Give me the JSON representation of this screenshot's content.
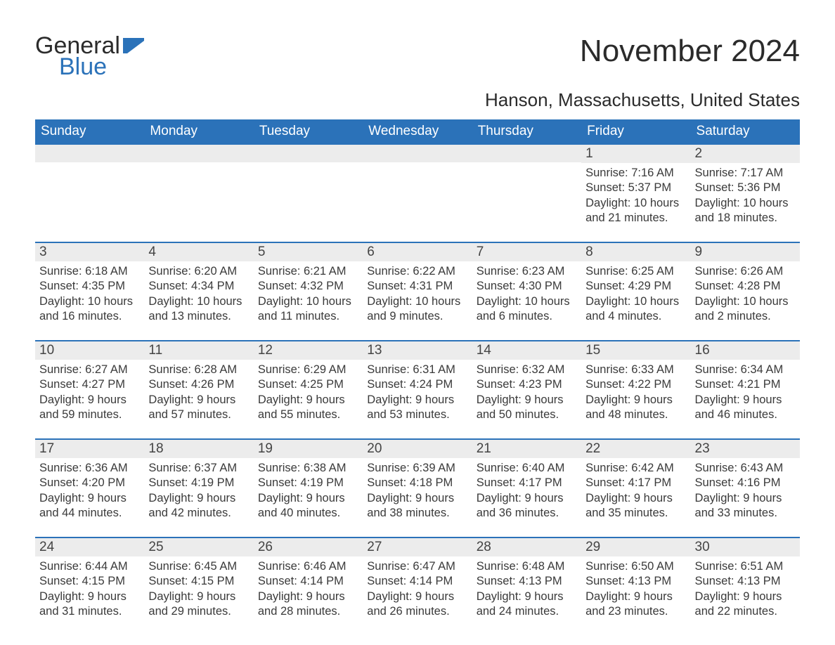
{
  "logo": {
    "word1": "General",
    "word2": "Blue"
  },
  "title": "November 2024",
  "location": "Hanson, Massachusetts, United States",
  "colors": {
    "header_bg": "#2b72b9",
    "header_text": "#ffffff",
    "daynum_bg": "#ececec",
    "border": "#2b72b9",
    "text": "#333333"
  },
  "fonts": {
    "title_pt": 44,
    "location_pt": 26,
    "dow_pt": 19,
    "daynum_pt": 19,
    "body_pt": 16.5
  },
  "daysOfWeek": [
    "Sunday",
    "Monday",
    "Tuesday",
    "Wednesday",
    "Thursday",
    "Friday",
    "Saturday"
  ],
  "labels": {
    "sunrise": "Sunrise: ",
    "sunset": "Sunset: ",
    "daylight": "Daylight: "
  },
  "weeks": [
    [
      null,
      null,
      null,
      null,
      null,
      {
        "n": "1",
        "sunrise": "7:16 AM",
        "sunset": "5:37 PM",
        "daylight": "10 hours and 21 minutes."
      },
      {
        "n": "2",
        "sunrise": "7:17 AM",
        "sunset": "5:36 PM",
        "daylight": "10 hours and 18 minutes."
      }
    ],
    [
      {
        "n": "3",
        "sunrise": "6:18 AM",
        "sunset": "4:35 PM",
        "daylight": "10 hours and 16 minutes."
      },
      {
        "n": "4",
        "sunrise": "6:20 AM",
        "sunset": "4:34 PM",
        "daylight": "10 hours and 13 minutes."
      },
      {
        "n": "5",
        "sunrise": "6:21 AM",
        "sunset": "4:32 PM",
        "daylight": "10 hours and 11 minutes."
      },
      {
        "n": "6",
        "sunrise": "6:22 AM",
        "sunset": "4:31 PM",
        "daylight": "10 hours and 9 minutes."
      },
      {
        "n": "7",
        "sunrise": "6:23 AM",
        "sunset": "4:30 PM",
        "daylight": "10 hours and 6 minutes."
      },
      {
        "n": "8",
        "sunrise": "6:25 AM",
        "sunset": "4:29 PM",
        "daylight": "10 hours and 4 minutes."
      },
      {
        "n": "9",
        "sunrise": "6:26 AM",
        "sunset": "4:28 PM",
        "daylight": "10 hours and 2 minutes."
      }
    ],
    [
      {
        "n": "10",
        "sunrise": "6:27 AM",
        "sunset": "4:27 PM",
        "daylight": "9 hours and 59 minutes."
      },
      {
        "n": "11",
        "sunrise": "6:28 AM",
        "sunset": "4:26 PM",
        "daylight": "9 hours and 57 minutes."
      },
      {
        "n": "12",
        "sunrise": "6:29 AM",
        "sunset": "4:25 PM",
        "daylight": "9 hours and 55 minutes."
      },
      {
        "n": "13",
        "sunrise": "6:31 AM",
        "sunset": "4:24 PM",
        "daylight": "9 hours and 53 minutes."
      },
      {
        "n": "14",
        "sunrise": "6:32 AM",
        "sunset": "4:23 PM",
        "daylight": "9 hours and 50 minutes."
      },
      {
        "n": "15",
        "sunrise": "6:33 AM",
        "sunset": "4:22 PM",
        "daylight": "9 hours and 48 minutes."
      },
      {
        "n": "16",
        "sunrise": "6:34 AM",
        "sunset": "4:21 PM",
        "daylight": "9 hours and 46 minutes."
      }
    ],
    [
      {
        "n": "17",
        "sunrise": "6:36 AM",
        "sunset": "4:20 PM",
        "daylight": "9 hours and 44 minutes."
      },
      {
        "n": "18",
        "sunrise": "6:37 AM",
        "sunset": "4:19 PM",
        "daylight": "9 hours and 42 minutes."
      },
      {
        "n": "19",
        "sunrise": "6:38 AM",
        "sunset": "4:19 PM",
        "daylight": "9 hours and 40 minutes."
      },
      {
        "n": "20",
        "sunrise": "6:39 AM",
        "sunset": "4:18 PM",
        "daylight": "9 hours and 38 minutes."
      },
      {
        "n": "21",
        "sunrise": "6:40 AM",
        "sunset": "4:17 PM",
        "daylight": "9 hours and 36 minutes."
      },
      {
        "n": "22",
        "sunrise": "6:42 AM",
        "sunset": "4:17 PM",
        "daylight": "9 hours and 35 minutes."
      },
      {
        "n": "23",
        "sunrise": "6:43 AM",
        "sunset": "4:16 PM",
        "daylight": "9 hours and 33 minutes."
      }
    ],
    [
      {
        "n": "24",
        "sunrise": "6:44 AM",
        "sunset": "4:15 PM",
        "daylight": "9 hours and 31 minutes."
      },
      {
        "n": "25",
        "sunrise": "6:45 AM",
        "sunset": "4:15 PM",
        "daylight": "9 hours and 29 minutes."
      },
      {
        "n": "26",
        "sunrise": "6:46 AM",
        "sunset": "4:14 PM",
        "daylight": "9 hours and 28 minutes."
      },
      {
        "n": "27",
        "sunrise": "6:47 AM",
        "sunset": "4:14 PM",
        "daylight": "9 hours and 26 minutes."
      },
      {
        "n": "28",
        "sunrise": "6:48 AM",
        "sunset": "4:13 PM",
        "daylight": "9 hours and 24 minutes."
      },
      {
        "n": "29",
        "sunrise": "6:50 AM",
        "sunset": "4:13 PM",
        "daylight": "9 hours and 23 minutes."
      },
      {
        "n": "30",
        "sunrise": "6:51 AM",
        "sunset": "4:13 PM",
        "daylight": "9 hours and 22 minutes."
      }
    ]
  ]
}
